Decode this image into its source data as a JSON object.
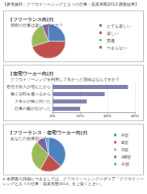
{
  "header": "【参考資料：クラウドソーシングと人々の仕事・就業実態2013 調査結果】",
  "chart_data": [
    {
      "type": "pie",
      "title": "[フリーランス向け]",
      "subtitle": "現在の仕事は楽しいですか？",
      "categories": [
        "とても楽しい",
        "楽しい",
        "普通",
        "つまらない"
      ],
      "values": [
        25,
        45,
        24,
        6
      ],
      "colors": [
        "#4f81bd",
        "#c0504d",
        "#9bbb59",
        "#8064a2"
      ],
      "legend": "right"
    },
    {
      "type": "bar",
      "title": "[在宅ワーカー向け]",
      "subtitle": "クラウドソーシングを利用して良かった理由はなんですか？",
      "orientation": "horizontal",
      "categories": [
        "在宅で収入が増えたから",
        "働く日時を選べるから",
        "スキルが身に付いた",
        "仕事の幅が広がった"
      ],
      "values": [
        55,
        38,
        25,
        20
      ],
      "color": "#7f7fb2",
      "xlim": [
        0,
        60
      ],
      "xticks": [
        {
          "value": 0,
          "label": "0%"
        },
        {
          "value": 20,
          "label": "20%"
        },
        {
          "value": 40,
          "label": "40%"
        },
        {
          "value": 60,
          "label": "60%"
        }
      ],
      "grid": true
    },
    {
      "type": "pie",
      "title": "[フリーランス・在宅ワーカー向け]",
      "subtitle": "あなたの血液型は？",
      "categories": [
        "A型",
        "B型",
        "O型",
        "AB型",
        "不明"
      ],
      "values": [
        37,
        21,
        30,
        9,
        3
      ],
      "colors": [
        "#4f81bd",
        "#c0504d",
        "#9bbb59",
        "#8064a2",
        "#4bacc6"
      ],
      "legend": "right"
    }
  ],
  "note": "※ 本調査の詳細につきましては、クラウドソーシングメディア「クラウドソーシングと人々の仕事・就業実態2013」をご覧ください。"
}
